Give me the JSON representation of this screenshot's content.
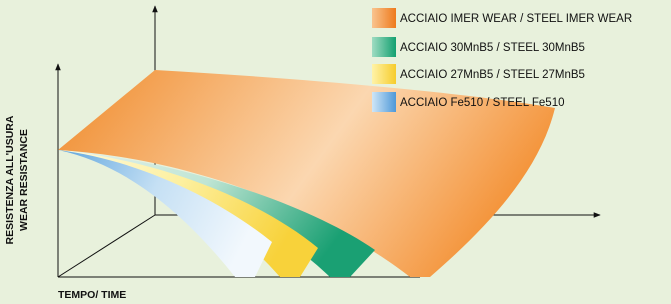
{
  "axes": {
    "y_label_1": "RESISTENZA ALL'USURA",
    "y_label_2": "WEAR RESISTANCE",
    "x_label": "TEMPO/ TIME"
  },
  "legend": {
    "items": [
      {
        "label": "ACCIAIO IMER WEAR / STEEL IMER WEAR"
      },
      {
        "label": "ACCIAIO 30MnB5 / STEEL 30MnB5"
      },
      {
        "label": "ACCIAIO 27MnB5 / STEEL 27MnB5"
      },
      {
        "label": "ACCIAIO Fe510 / STEEL Fe510"
      }
    ]
  }
}
